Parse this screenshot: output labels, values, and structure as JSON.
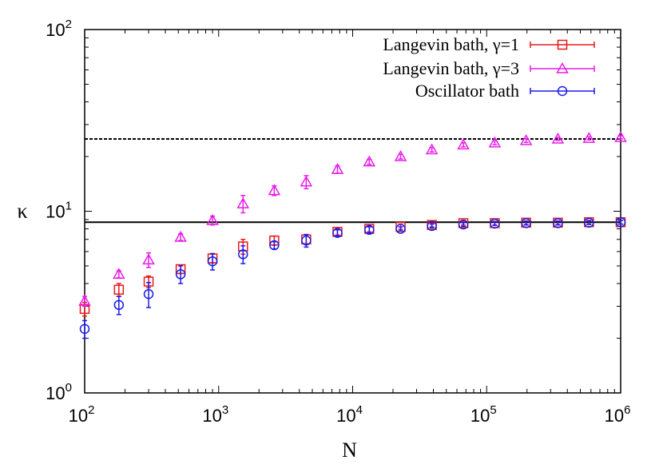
{
  "chart_data": {
    "type": "scatter",
    "xlabel": "N",
    "ylabel": "κ",
    "xscale": "log",
    "yscale": "log",
    "xlim": [
      100,
      1000000
    ],
    "ylim": [
      1,
      100
    ],
    "grid": false,
    "legend_position": "top-right",
    "x_ticks": [
      {
        "base": "10",
        "exp": "2"
      },
      {
        "base": "10",
        "exp": "3"
      },
      {
        "base": "10",
        "exp": "4"
      },
      {
        "base": "10",
        "exp": "5"
      },
      {
        "base": "10",
        "exp": "6"
      }
    ],
    "y_ticks": [
      {
        "base": "10",
        "exp": "0"
      },
      {
        "base": "10",
        "exp": "1"
      },
      {
        "base": "10",
        "exp": "2"
      }
    ],
    "reference_lines": [
      {
        "style": "dashed",
        "y": 25
      },
      {
        "style": "solid",
        "y": 8.7
      }
    ],
    "series": [
      {
        "name": "Langevin bath, γ=1",
        "marker": "square",
        "color": "#e8191c",
        "points": [
          {
            "x": 100,
            "y": 2.9,
            "err": 0.25
          },
          {
            "x": 180,
            "y": 3.7,
            "err": 0.3
          },
          {
            "x": 300,
            "y": 4.1,
            "err": 0.3
          },
          {
            "x": 520,
            "y": 4.8,
            "err": 0.25
          },
          {
            "x": 900,
            "y": 5.5,
            "err": 0.3
          },
          {
            "x": 1520,
            "y": 6.4,
            "err": 0.6
          },
          {
            "x": 2600,
            "y": 6.9,
            "err": 0.4
          },
          {
            "x": 4500,
            "y": 7.0,
            "err": 0.4
          },
          {
            "x": 7700,
            "y": 7.7,
            "err": 0.3
          },
          {
            "x": 13300,
            "y": 8.0,
            "err": 0.3
          },
          {
            "x": 22800,
            "y": 8.2,
            "err": 0.25
          },
          {
            "x": 39000,
            "y": 8.4,
            "err": 0.2
          },
          {
            "x": 67000,
            "y": 8.6,
            "err": 0.2
          },
          {
            "x": 115000,
            "y": 8.6,
            "err": 0.2
          },
          {
            "x": 197000,
            "y": 8.65,
            "err": 0.2
          },
          {
            "x": 340000,
            "y": 8.65,
            "err": 0.2
          },
          {
            "x": 580000,
            "y": 8.7,
            "err": 0.2
          },
          {
            "x": 1000000,
            "y": 8.7,
            "err": 0.2
          }
        ]
      },
      {
        "name": "Langevin bath, γ=3",
        "marker": "triangle",
        "color": "#e81ce8",
        "points": [
          {
            "x": 100,
            "y": 3.2,
            "err": 0.2
          },
          {
            "x": 180,
            "y": 4.5,
            "err": 0.2
          },
          {
            "x": 300,
            "y": 5.4,
            "err": 0.5
          },
          {
            "x": 520,
            "y": 7.2,
            "err": 0.3
          },
          {
            "x": 900,
            "y": 8.9,
            "err": 0.5
          },
          {
            "x": 1520,
            "y": 11.0,
            "err": 1.2
          },
          {
            "x": 2600,
            "y": 13.0,
            "err": 0.8
          },
          {
            "x": 4500,
            "y": 14.5,
            "err": 1.2
          },
          {
            "x": 7700,
            "y": 17.0,
            "err": 0.8
          },
          {
            "x": 13300,
            "y": 18.7,
            "err": 0.6
          },
          {
            "x": 22800,
            "y": 20.0,
            "err": 0.6
          },
          {
            "x": 39000,
            "y": 21.8,
            "err": 0.6
          },
          {
            "x": 67000,
            "y": 23.2,
            "err": 0.6
          },
          {
            "x": 115000,
            "y": 23.8,
            "err": 0.6
          },
          {
            "x": 197000,
            "y": 24.5,
            "err": 0.6
          },
          {
            "x": 340000,
            "y": 25.0,
            "err": 0.5
          },
          {
            "x": 580000,
            "y": 25.2,
            "err": 0.5
          },
          {
            "x": 1000000,
            "y": 25.5,
            "err": 0.5
          }
        ]
      },
      {
        "name": "Oscillator bath",
        "marker": "circle",
        "color": "#1c1ce8",
        "points": [
          {
            "x": 100,
            "y": 2.25,
            "err": 0.25
          },
          {
            "x": 180,
            "y": 3.05,
            "err": 0.35
          },
          {
            "x": 300,
            "y": 3.5,
            "err": 0.55
          },
          {
            "x": 520,
            "y": 4.5,
            "err": 0.5
          },
          {
            "x": 900,
            "y": 5.3,
            "err": 0.55
          },
          {
            "x": 1520,
            "y": 5.8,
            "err": 0.65
          },
          {
            "x": 2600,
            "y": 6.5,
            "err": 0.3
          },
          {
            "x": 4500,
            "y": 6.9,
            "err": 0.55
          },
          {
            "x": 7700,
            "y": 7.6,
            "err": 0.3
          },
          {
            "x": 13300,
            "y": 7.9,
            "err": 0.3
          },
          {
            "x": 22800,
            "y": 8.0,
            "err": 0.2
          },
          {
            "x": 39000,
            "y": 8.3,
            "err": 0.2
          },
          {
            "x": 67000,
            "y": 8.45,
            "err": 0.2
          },
          {
            "x": 115000,
            "y": 8.55,
            "err": 0.2
          },
          {
            "x": 197000,
            "y": 8.6,
            "err": 0.2
          },
          {
            "x": 340000,
            "y": 8.6,
            "err": 0.2
          },
          {
            "x": 580000,
            "y": 8.65,
            "err": 0.2
          },
          {
            "x": 1000000,
            "y": 8.7,
            "err": 0.2
          }
        ]
      }
    ]
  }
}
